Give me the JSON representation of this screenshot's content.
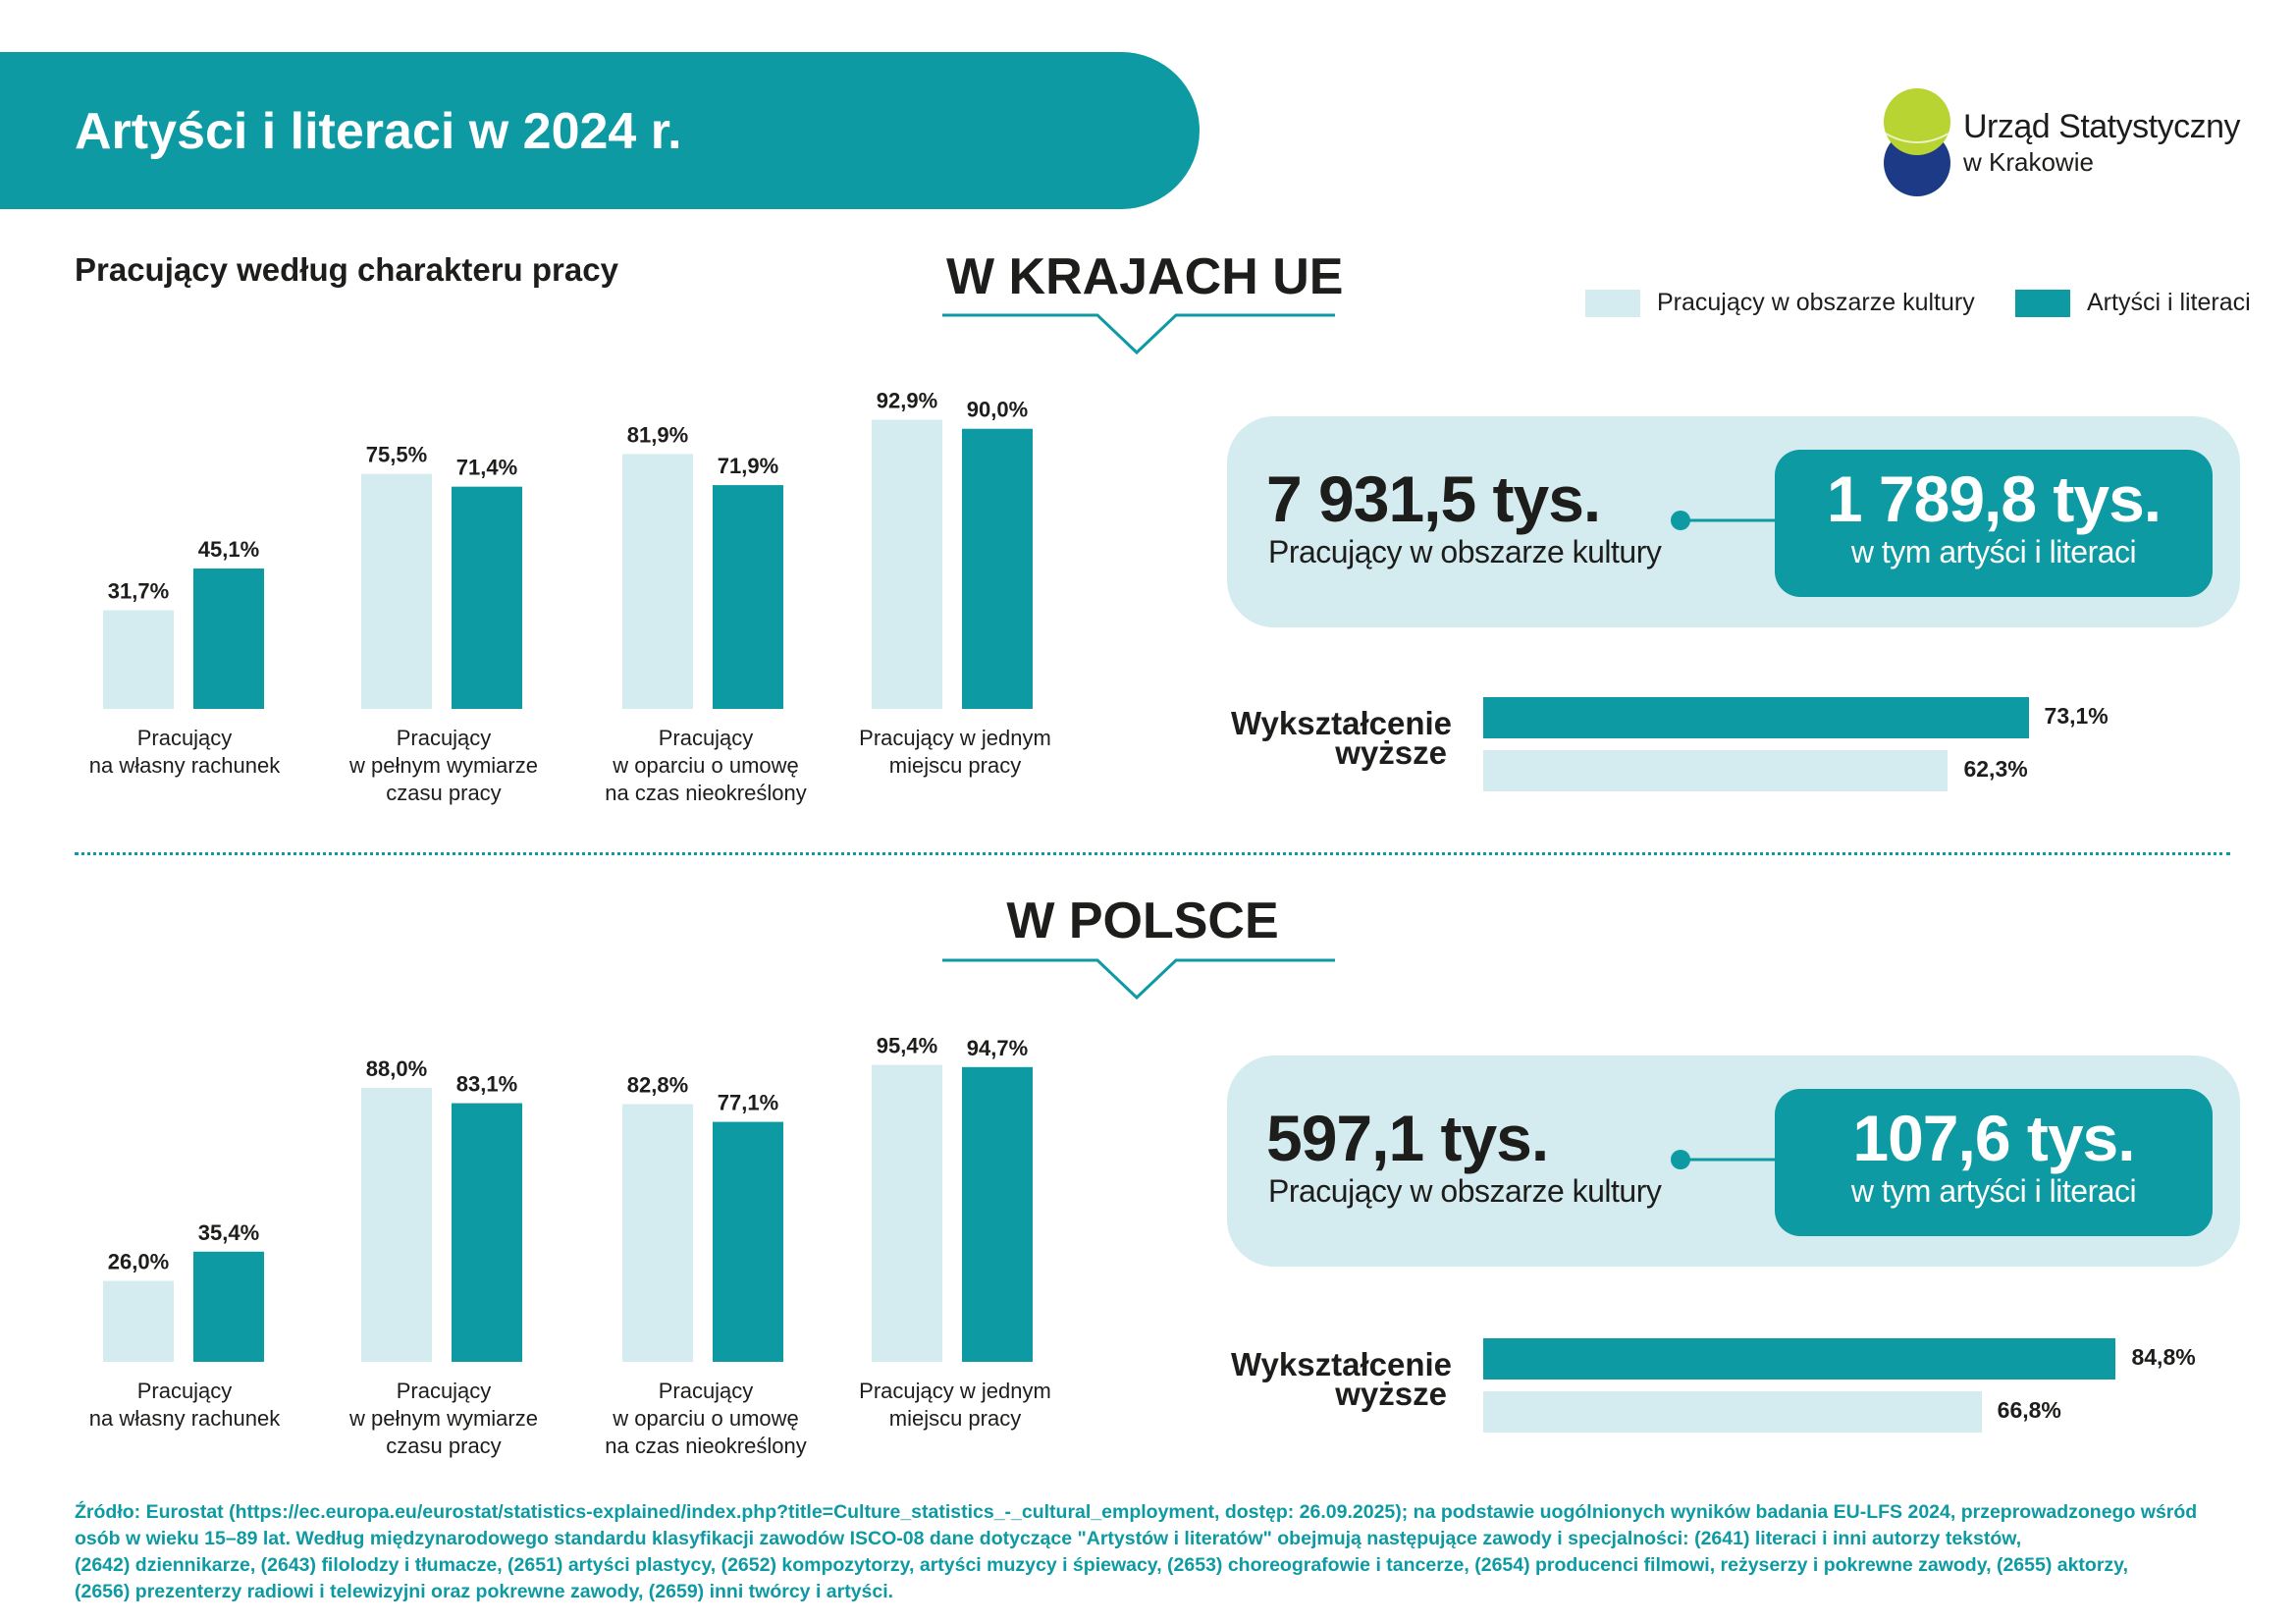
{
  "header": {
    "title": "Artyści i literaci w 2024 r."
  },
  "logo": {
    "name": "Urząd Statystyczny",
    "city": "w Krakowie",
    "colors": {
      "green": "#b8d432",
      "navy": "#1d3a87"
    }
  },
  "subtitle": "Pracujący według charakteru pracy",
  "legend": {
    "items": [
      {
        "label": "Pracujący w obszarze kultury",
        "color": "#d4ecef"
      },
      {
        "label": "Artyści i literaci",
        "color": "#0e9aa2"
      }
    ]
  },
  "colors": {
    "accent": "#0e9aa2",
    "light": "#d4ecef",
    "text": "#1d1d1b"
  },
  "eu": {
    "heading": "W KRAJACH UE",
    "total": {
      "value": "7 931,5 tys.",
      "caption": "Pracujący w obszarze kultury"
    },
    "artists": {
      "value": "1 789,8 tys.",
      "caption": "w tym artyści i literaci"
    },
    "education": {
      "label_line1": "Wykształcenie",
      "label_line2": "wyższe",
      "artists": "73,1%",
      "culture": "62,3%"
    }
  },
  "pl": {
    "heading": "W POLSCE",
    "total": {
      "value": "597,1 tys.",
      "caption": "Pracujący w obszarze kultury"
    },
    "artists": {
      "value": "107,6 tys.",
      "caption": "w tym artyści i literaci"
    },
    "education": {
      "label_line1": "Wykształcenie",
      "label_line2": "wyższe",
      "artists": "84,8%",
      "culture": "66,8%"
    }
  },
  "categories": [
    [
      "Pracujący",
      "na własny rachunek"
    ],
    [
      "Pracujący",
      "w pełnym wymiarze",
      "czasu pracy"
    ],
    [
      "Pracujący",
      "w oparciu o umowę",
      "na czas nieokreślony"
    ],
    [
      "Pracujący w jednym",
      "miejscu pracy"
    ]
  ],
  "chart_data": [
    {
      "type": "bar",
      "title": "W KRAJACH UE",
      "categories": [
        "Pracujący na własny rachunek",
        "Pracujący w pełnym wymiarze czasu pracy",
        "Pracujący w oparciu o umowę na czas nieokreślony",
        "Pracujący w jednym miejscu pracy"
      ],
      "series": [
        {
          "name": "Pracujący w obszarze kultury",
          "values": [
            31.7,
            75.5,
            81.9,
            92.9
          ],
          "labels": [
            "31,7%",
            "75,5%",
            "81,9%",
            "92,9%"
          ]
        },
        {
          "name": "Artyści i literaci",
          "values": [
            45.1,
            71.4,
            71.9,
            90.0
          ],
          "labels": [
            "45,1%",
            "71,4%",
            "71,9%",
            "90,0%"
          ]
        }
      ],
      "ylim": [
        0,
        100
      ]
    },
    {
      "type": "bar",
      "title": "W POLSCE",
      "categories": [
        "Pracujący na własny rachunek",
        "Pracujący w pełnym wymiarze czasu pracy",
        "Pracujący w oparciu o umowę na czas nieokreślony",
        "Pracujący w jednym miejscu pracy"
      ],
      "series": [
        {
          "name": "Pracujący w obszarze kultury",
          "values": [
            26.0,
            88.0,
            82.8,
            95.4
          ],
          "labels": [
            "26,0%",
            "88,0%",
            "82,8%",
            "95,4%"
          ]
        },
        {
          "name": "Artyści i literaci",
          "values": [
            35.4,
            83.1,
            77.1,
            94.7
          ],
          "labels": [
            "35,4%",
            "83,1%",
            "77,1%",
            "94,7%"
          ]
        }
      ],
      "ylim": [
        0,
        100
      ]
    },
    {
      "type": "bar",
      "title": "Wykształcenie wyższe",
      "categories": [
        "W KRAJACH UE",
        "W POLSCE"
      ],
      "series": [
        {
          "name": "Artyści i literaci",
          "values": [
            73.1,
            84.8
          ]
        },
        {
          "name": "Pracujący w obszarze kultury",
          "values": [
            62.3,
            66.8
          ]
        }
      ],
      "ylim": [
        0,
        100
      ]
    }
  ],
  "footnote": [
    "Źródło: Eurostat (https://ec.europa.eu/eurostat/statistics-explained/index.php?title=Culture_statistics_-_cultural_employment, dostęp: 26.09.2025); na podstawie uogólnionych wyników badania EU-LFS 2024, przeprowadzonego wśród",
    "osób w wieku 15–89 lat. Według międzynarodowego standardu klasyfikacji zawodów ISCO-08 dane dotyczące \"Artystów i literatów\" obejmują następujące zawody i specjalności: (2641) literaci i inni autorzy tekstów,",
    "(2642) dziennikarze, (2643) filolodzy i tłumacze, (2651) artyści plastycy, (2652) kompozytorzy, artyści muzycy i śpiewacy, (2653) choreografowie i tancerze, (2654) producenci filmowi, reżyserzy i pokrewne zawody, (2655) aktorzy,",
    "(2656) prezenterzy radiowi i telewizyjni oraz pokrewne zawody, (2659) inni twórcy i artyści."
  ]
}
